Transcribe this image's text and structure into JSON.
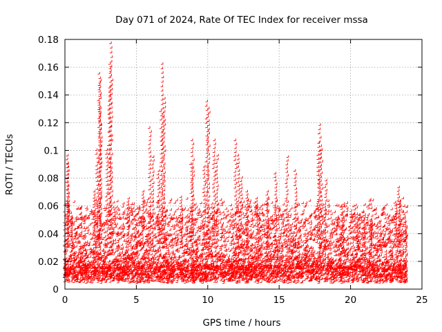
{
  "chart_data": {
    "type": "scatter",
    "title": "Day 071 of 2024, Rate Of TEC Index for receiver mssa",
    "xlabel": "GPS time / hours",
    "ylabel": "ROTI / TECUs",
    "xlim": [
      0,
      25
    ],
    "ylim": [
      0,
      0.18
    ],
    "x_ticks": [
      0,
      5,
      10,
      15,
      20,
      25
    ],
    "y_ticks": [
      0,
      0.02,
      0.04,
      0.06,
      0.08,
      0.1,
      0.12,
      0.14,
      0.16,
      0.18
    ],
    "y_tick_labels": [
      "0",
      "0.02",
      "0.04",
      "0.06",
      "0.08",
      "0.1",
      "0.12",
      "0.14",
      "0.16",
      "0.18"
    ],
    "grid": true,
    "marker": "+",
    "color": "#ff0000",
    "series": [
      {
        "name": "ROTI",
        "note": "dense band of points spanning 0-24 h, baseline mostly 0.005-0.03 TECU/min; listed points are representative peaks",
        "x": [
          0.2,
          0.25,
          0.3,
          0.5,
          2.1,
          2.3,
          2.45,
          2.5,
          2.55,
          3.0,
          3.15,
          3.2,
          3.3,
          4.5,
          5.5,
          6.0,
          6.2,
          6.6,
          6.8,
          6.9,
          7.0,
          8.2,
          8.9,
          9.0,
          9.8,
          10.0,
          10.1,
          10.5,
          10.7,
          12.0,
          12.2,
          12.4,
          12.8,
          13.5,
          14.2,
          14.8,
          15.6,
          16.2,
          17.8,
          17.9,
          18.0,
          18.3,
          19.5,
          20.5,
          21.0,
          21.5,
          23.2,
          23.4,
          23.5,
          23.9
        ],
        "y": [
          0.09,
          0.096,
          0.063,
          0.05,
          0.07,
          0.1,
          0.155,
          0.15,
          0.13,
          0.1,
          0.145,
          0.162,
          0.177,
          0.065,
          0.07,
          0.116,
          0.095,
          0.085,
          0.128,
          0.162,
          0.137,
          0.066,
          0.09,
          0.107,
          0.088,
          0.135,
          0.13,
          0.107,
          0.096,
          0.107,
          0.096,
          0.08,
          0.07,
          0.065,
          0.07,
          0.083,
          0.095,
          0.085,
          0.105,
          0.118,
          0.1,
          0.078,
          0.055,
          0.05,
          0.055,
          0.05,
          0.062,
          0.073,
          0.063,
          0.048
        ]
      }
    ]
  }
}
